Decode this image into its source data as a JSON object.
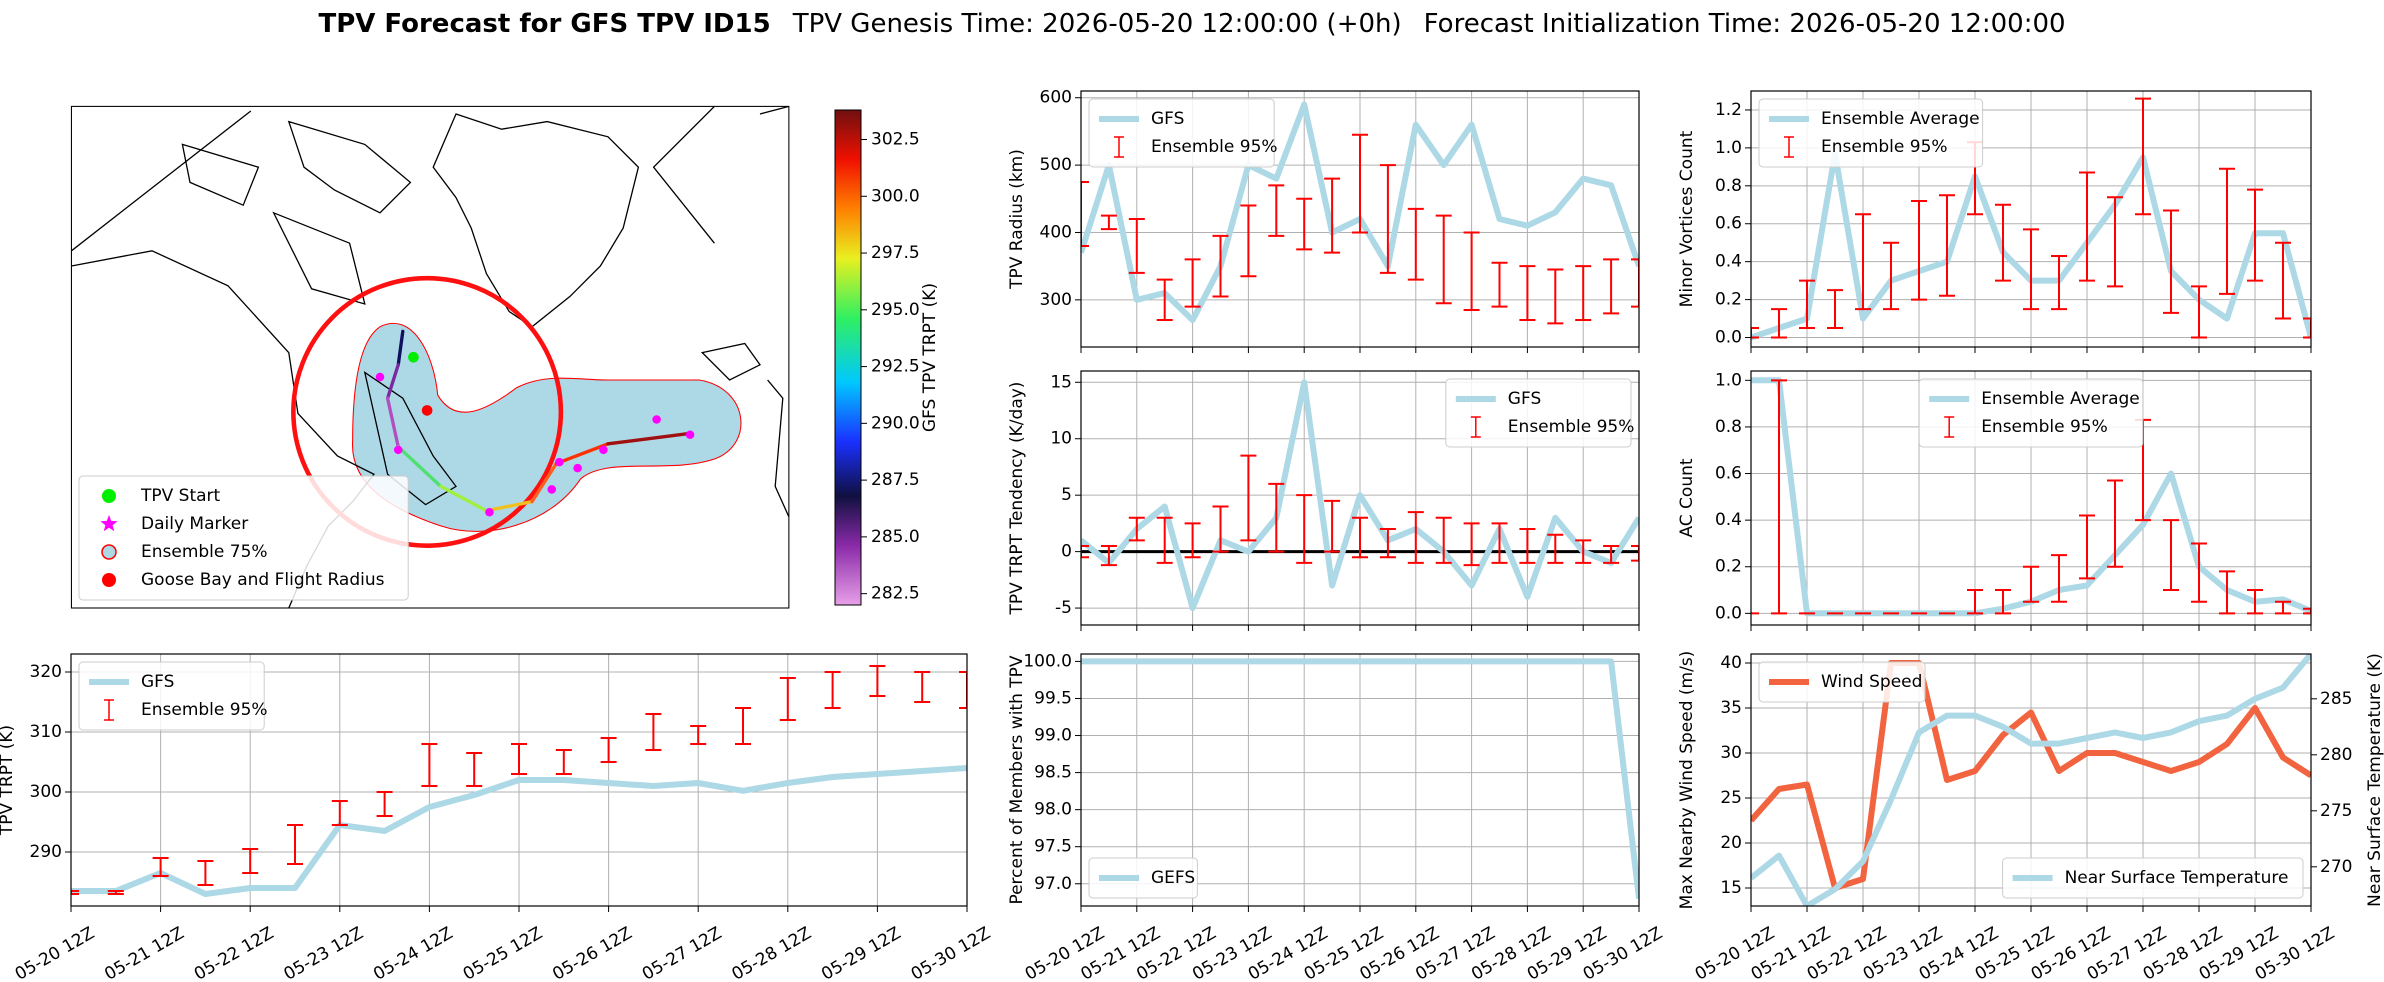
{
  "figure_title": {
    "main": "TPV Forecast for GFS TPV ID15",
    "genesis": "TPV Genesis Time: 2026-05-20 12:00:00 (+0h)",
    "init": "Forecast Initialization Time: 2026-05-20 12:00:00"
  },
  "chart_data": [
    {
      "type": "map",
      "legend": "lower left",
      "legend_entries": [
        {
          "label": "TPV Start",
          "color": "#00ee00",
          "marker": "circle"
        },
        {
          "label": "Daily Marker",
          "color": "#ff00ff",
          "marker": "star"
        },
        {
          "label": "Ensemble 75%",
          "color": "#add8e6",
          "edge": "#ff0000",
          "marker": "circle"
        },
        {
          "label": "Goose Bay and Flight Radius",
          "color": "#ff0000",
          "marker": "circle"
        }
      ],
      "colorbar": {
        "label": "GFS TPV TRPT (K)",
        "lim": [
          282,
          303.8
        ],
        "ticks": [
          282.5,
          {
            "value": 285,
            "label": "285.0"
          },
          287.5,
          {
            "value": 290,
            "label": "290.0"
          },
          292.5,
          {
            "value": 295,
            "label": "295.0"
          },
          297.5,
          {
            "value": 300,
            "label": "300.0"
          },
          302.5
        ]
      }
    },
    {
      "type": "line",
      "ylabel": "TPV Radius (km)",
      "legend": "upper left",
      "grid": true,
      "x": [
        "05-20 12Z",
        "05-21 00Z",
        "05-21 12Z",
        "05-22 00Z",
        "05-22 12Z",
        "05-23 00Z",
        "05-23 12Z",
        "05-24 00Z",
        "05-24 12Z",
        "05-25 00Z",
        "05-25 12Z",
        "05-26 00Z",
        "05-26 12Z",
        "05-27 00Z",
        "05-27 12Z",
        "05-28 00Z",
        "05-28 12Z",
        "05-29 00Z",
        "05-29 12Z",
        "05-30 00Z",
        "05-30 12Z"
      ],
      "xticks": [
        "05-20 12Z",
        "05-21 12Z",
        "05-22 12Z",
        "05-23 12Z",
        "05-24 12Z",
        "05-25 12Z",
        "05-26 12Z",
        "05-27 12Z",
        "05-28 12Z",
        "05-29 12Z",
        "05-30 12Z"
      ],
      "ylim": [
        230,
        610
      ],
      "yticks": [
        300,
        400,
        500,
        600
      ],
      "series": [
        {
          "name": "GFS",
          "color": "#add8e6",
          "values": [
            370,
            500,
            300,
            310,
            270,
            350,
            500,
            480,
            590,
            400,
            420,
            350,
            560,
            500,
            560,
            420,
            410,
            430,
            480,
            470,
            350
          ]
        }
      ],
      "errorbars": {
        "name": "Ensemble 95%",
        "color": "#ff0000",
        "low": [
          380,
          405,
          340,
          270,
          290,
          305,
          335,
          395,
          375,
          370,
          400,
          340,
          330,
          295,
          285,
          290,
          270,
          265,
          270,
          280,
          290
        ],
        "high": [
          475,
          425,
          420,
          330,
          360,
          395,
          440,
          470,
          450,
          480,
          545,
          500,
          435,
          425,
          400,
          355,
          350,
          345,
          350,
          360,
          360
        ]
      }
    },
    {
      "type": "line",
      "ylabel": "Minor Vortices Count",
      "legend": "upper left",
      "grid": true,
      "x": [
        "05-20 12Z",
        "05-21 00Z",
        "05-21 12Z",
        "05-22 00Z",
        "05-22 12Z",
        "05-23 00Z",
        "05-23 12Z",
        "05-24 00Z",
        "05-24 12Z",
        "05-25 00Z",
        "05-25 12Z",
        "05-26 00Z",
        "05-26 12Z",
        "05-27 00Z",
        "05-27 12Z",
        "05-28 00Z",
        "05-28 12Z",
        "05-29 00Z",
        "05-29 12Z",
        "05-30 00Z",
        "05-30 12Z"
      ],
      "xticks": [
        "05-20 12Z",
        "05-21 12Z",
        "05-22 12Z",
        "05-23 12Z",
        "05-24 12Z",
        "05-25 12Z",
        "05-26 12Z",
        "05-27 12Z",
        "05-28 12Z",
        "05-29 12Z",
        "05-30 12Z"
      ],
      "ylim": [
        -0.05,
        1.3
      ],
      "yticks": [
        {
          "value": 0,
          "label": "0.0"
        },
        0.2,
        0.4,
        0.6,
        0.8,
        {
          "value": 1,
          "label": "1.0"
        },
        1.2
      ],
      "series": [
        {
          "name": "Ensemble Average",
          "color": "#add8e6",
          "values": [
            0.0,
            0.05,
            0.1,
            0.97,
            0.1,
            0.3,
            0.35,
            0.4,
            0.85,
            0.45,
            0.3,
            0.3,
            0.5,
            0.7,
            0.95,
            0.35,
            0.2,
            0.1,
            0.55,
            0.55,
            0.0
          ]
        }
      ],
      "errorbars": {
        "name": "Ensemble 95%",
        "color": "#ff0000",
        "low": [
          0,
          0,
          0.05,
          0.05,
          0.15,
          0.15,
          0.2,
          0.22,
          0.65,
          0.3,
          0.15,
          0.15,
          0.3,
          0.27,
          0.65,
          0.13,
          0,
          0.23,
          0.3,
          0.1,
          0
        ],
        "high": [
          0.05,
          0.15,
          0.3,
          0.25,
          0.65,
          0.5,
          0.72,
          0.75,
          1.03,
          0.7,
          0.57,
          0.43,
          0.87,
          0.74,
          1.26,
          0.67,
          0.27,
          0.89,
          0.78,
          0.5,
          0.1
        ]
      }
    },
    {
      "type": "line",
      "ylabel": "TPV TRPT Tendency (K/day)",
      "legend": "upper right",
      "grid": true,
      "hline": 0,
      "x": [
        "05-20 12Z",
        "05-21 00Z",
        "05-21 12Z",
        "05-22 00Z",
        "05-22 12Z",
        "05-23 00Z",
        "05-23 12Z",
        "05-24 00Z",
        "05-24 12Z",
        "05-25 00Z",
        "05-25 12Z",
        "05-26 00Z",
        "05-26 12Z",
        "05-27 00Z",
        "05-27 12Z",
        "05-28 00Z",
        "05-28 12Z",
        "05-29 00Z",
        "05-29 12Z",
        "05-30 00Z",
        "05-30 12Z"
      ],
      "xticks": [
        "05-20 12Z",
        "05-21 12Z",
        "05-22 12Z",
        "05-23 12Z",
        "05-24 12Z",
        "05-25 12Z",
        "05-26 12Z",
        "05-27 12Z",
        "05-28 12Z",
        "05-29 12Z",
        "05-30 12Z"
      ],
      "ylim": [
        -6.5,
        16
      ],
      "yticks": [
        -5,
        0,
        5,
        10,
        15
      ],
      "series": [
        {
          "name": "GFS",
          "color": "#add8e6",
          "values": [
            1,
            -1,
            2,
            4,
            -5,
            1,
            0,
            3,
            15,
            -3,
            5,
            1,
            2,
            0,
            -3,
            2,
            -4,
            3,
            0,
            -1,
            3
          ]
        }
      ],
      "errorbars": {
        "name": "Ensemble 95%",
        "color": "#ff0000",
        "low": [
          -0.5,
          -1.2,
          1,
          -1,
          -0.5,
          0,
          1,
          0,
          -1,
          0,
          -0.5,
          -0.5,
          -1,
          -1,
          -1.2,
          -1,
          -1,
          -1,
          -1,
          -1,
          -0.8
        ],
        "high": [
          0.5,
          0.5,
          3,
          3,
          2.5,
          4,
          8.5,
          6,
          5,
          4.5,
          3,
          2,
          3.5,
          3,
          2.5,
          2.5,
          2,
          1.5,
          1,
          0.5,
          0.5
        ]
      }
    },
    {
      "type": "line",
      "ylabel": "AC Count",
      "legend": "upper center",
      "grid": true,
      "x": [
        "05-20 12Z",
        "05-21 00Z",
        "05-21 12Z",
        "05-22 00Z",
        "05-22 12Z",
        "05-23 00Z",
        "05-23 12Z",
        "05-24 00Z",
        "05-24 12Z",
        "05-25 00Z",
        "05-25 12Z",
        "05-26 00Z",
        "05-26 12Z",
        "05-27 00Z",
        "05-27 12Z",
        "05-28 00Z",
        "05-28 12Z",
        "05-29 00Z",
        "05-29 12Z",
        "05-30 00Z",
        "05-30 12Z"
      ],
      "xticks": [
        "05-20 12Z",
        "05-21 12Z",
        "05-22 12Z",
        "05-23 12Z",
        "05-24 12Z",
        "05-25 12Z",
        "05-26 12Z",
        "05-27 12Z",
        "05-28 12Z",
        "05-29 12Z",
        "05-30 12Z"
      ],
      "ylim": [
        -0.05,
        1.04
      ],
      "yticks": [
        {
          "value": 0,
          "label": "0.0"
        },
        0.2,
        0.4,
        0.6,
        0.8,
        {
          "value": 1,
          "label": "1.0"
        }
      ],
      "series": [
        {
          "name": "Ensemble Average",
          "color": "#add8e6",
          "values": [
            1,
            1,
            0,
            0,
            0,
            0,
            0,
            0,
            0,
            0.02,
            0.05,
            0.1,
            0.12,
            0.25,
            0.38,
            0.6,
            0.2,
            0.1,
            0.05,
            0.06,
            0.01
          ]
        }
      ],
      "errorbars": {
        "name": "Ensemble 95%",
        "color": "#ff0000",
        "low": [
          0,
          0,
          0,
          0,
          0,
          0,
          0,
          0,
          0,
          0,
          0.05,
          0.05,
          0.15,
          0.2,
          0.4,
          0.1,
          0.05,
          0,
          0,
          0,
          0
        ],
        "high": [
          0,
          1,
          0,
          0,
          0,
          0,
          0,
          0,
          0.1,
          0.1,
          0.2,
          0.25,
          0.42,
          0.57,
          0.83,
          0.4,
          0.3,
          0.18,
          0.1,
          0.05,
          0.02
        ]
      }
    },
    {
      "type": "line",
      "ylabel": "TPV TRPT (K)",
      "legend": "upper left",
      "grid": true,
      "x": [
        "05-20 12Z",
        "05-21 00Z",
        "05-21 12Z",
        "05-22 00Z",
        "05-22 12Z",
        "05-23 00Z",
        "05-23 12Z",
        "05-24 00Z",
        "05-24 12Z",
        "05-25 00Z",
        "05-25 12Z",
        "05-26 00Z",
        "05-26 12Z",
        "05-27 00Z",
        "05-27 12Z",
        "05-28 00Z",
        "05-28 12Z",
        "05-29 00Z",
        "05-29 12Z",
        "05-30 00Z",
        "05-30 12Z"
      ],
      "xticks": [
        "05-20 12Z",
        "05-21 12Z",
        "05-22 12Z",
        "05-23 12Z",
        "05-24 12Z",
        "05-25 12Z",
        "05-26 12Z",
        "05-27 12Z",
        "05-28 12Z",
        "05-29 12Z",
        "05-30 12Z"
      ],
      "ylim": [
        281,
        323
      ],
      "yticks": [
        290,
        300,
        310,
        320
      ],
      "series": [
        {
          "name": "GFS",
          "color": "#add8e6",
          "values": [
            283.5,
            283.5,
            286.5,
            283,
            284,
            284,
            294.5,
            293.5,
            297.5,
            299.5,
            302,
            302,
            301.5,
            301,
            301.5,
            300.2,
            301.5,
            302.5,
            303,
            303.5,
            304
          ]
        }
      ],
      "errorbars": {
        "name": "Ensemble 95%",
        "color": "#ff0000",
        "low": [
          283,
          283,
          286,
          284.5,
          286.5,
          288,
          294.5,
          296,
          301,
          301,
          303,
          303,
          305,
          307,
          308,
          308,
          312,
          314,
          316,
          315,
          314
        ],
        "high": [
          283.5,
          283.5,
          289,
          288.5,
          290.5,
          294.5,
          298.5,
          300,
          308,
          306.5,
          308,
          307,
          309,
          313,
          311,
          314,
          319,
          320,
          321,
          320,
          320
        ]
      }
    },
    {
      "type": "line",
      "ylabel": "Percent of Members with TPV",
      "legend": "lower left",
      "grid": true,
      "x": [
        "05-20 12Z",
        "05-21 00Z",
        "05-21 12Z",
        "05-22 00Z",
        "05-22 12Z",
        "05-23 00Z",
        "05-23 12Z",
        "05-24 00Z",
        "05-24 12Z",
        "05-25 00Z",
        "05-25 12Z",
        "05-26 00Z",
        "05-26 12Z",
        "05-27 00Z",
        "05-27 12Z",
        "05-28 00Z",
        "05-28 12Z",
        "05-29 00Z",
        "05-29 12Z",
        "05-30 00Z",
        "05-30 12Z"
      ],
      "xticks": [
        "05-20 12Z",
        "05-21 12Z",
        "05-22 12Z",
        "05-23 12Z",
        "05-24 12Z",
        "05-25 12Z",
        "05-26 12Z",
        "05-27 12Z",
        "05-28 12Z",
        "05-29 12Z",
        "05-30 12Z"
      ],
      "ylim": [
        96.7,
        100.1
      ],
      "yticks": [
        {
          "value": 97,
          "label": "97.0"
        },
        97.5,
        {
          "value": 98,
          "label": "98.0"
        },
        98.5,
        {
          "value": 99,
          "label": "99.0"
        },
        99.5,
        {
          "value": 100,
          "label": "100.0"
        }
      ],
      "series": [
        {
          "name": "GEFS",
          "color": "#add8e6",
          "values": [
            100,
            100,
            100,
            100,
            100,
            100,
            100,
            100,
            100,
            100,
            100,
            100,
            100,
            100,
            100,
            100,
            100,
            100,
            100,
            100,
            96.8
          ]
        }
      ]
    },
    {
      "type": "line",
      "ylabel": "Max Nearby Wind Speed (m/s)",
      "ylabel_color": "#f26440",
      "y2label": "Near Surface Temperature (K)",
      "y2label_color": "#4169e1",
      "grid": true,
      "x": [
        "05-20 12Z",
        "05-21 00Z",
        "05-21 12Z",
        "05-22 00Z",
        "05-22 12Z",
        "05-23 00Z",
        "05-23 12Z",
        "05-24 00Z",
        "05-24 12Z",
        "05-25 00Z",
        "05-25 12Z",
        "05-26 00Z",
        "05-26 12Z",
        "05-27 00Z",
        "05-27 12Z",
        "05-28 00Z",
        "05-28 12Z",
        "05-29 00Z",
        "05-29 12Z",
        "05-30 00Z",
        "05-30 12Z"
      ],
      "xticks": [
        "05-20 12Z",
        "05-21 12Z",
        "05-22 12Z",
        "05-23 12Z",
        "05-24 12Z",
        "05-25 12Z",
        "05-26 12Z",
        "05-27 12Z",
        "05-28 12Z",
        "05-29 12Z",
        "05-30 12Z"
      ],
      "ylim": [
        13,
        41
      ],
      "yticks": [
        15,
        20,
        25,
        30,
        35,
        40
      ],
      "y2lim": [
        266.5,
        289
      ],
      "y2ticks": [
        270,
        275,
        280,
        285
      ],
      "series": [
        {
          "name": "Wind Speed",
          "color": "#f26440",
          "legend": "upper left",
          "values": [
            22.5,
            26,
            26.5,
            15,
            16,
            40,
            40,
            27,
            28,
            32,
            34.5,
            28,
            30,
            30,
            29,
            28,
            29,
            31,
            35,
            29.5,
            27.5
          ]
        },
        {
          "name": "Near Surface Temperature",
          "color": "#add8e6",
          "axis": "y2",
          "legend": "lower right",
          "values": [
            269,
            271,
            266.5,
            268,
            270.5,
            276,
            282,
            283.5,
            283.5,
            282.5,
            281,
            281,
            281.5,
            282,
            281.5,
            282,
            283,
            283.5,
            285,
            286,
            289
          ]
        }
      ]
    }
  ]
}
